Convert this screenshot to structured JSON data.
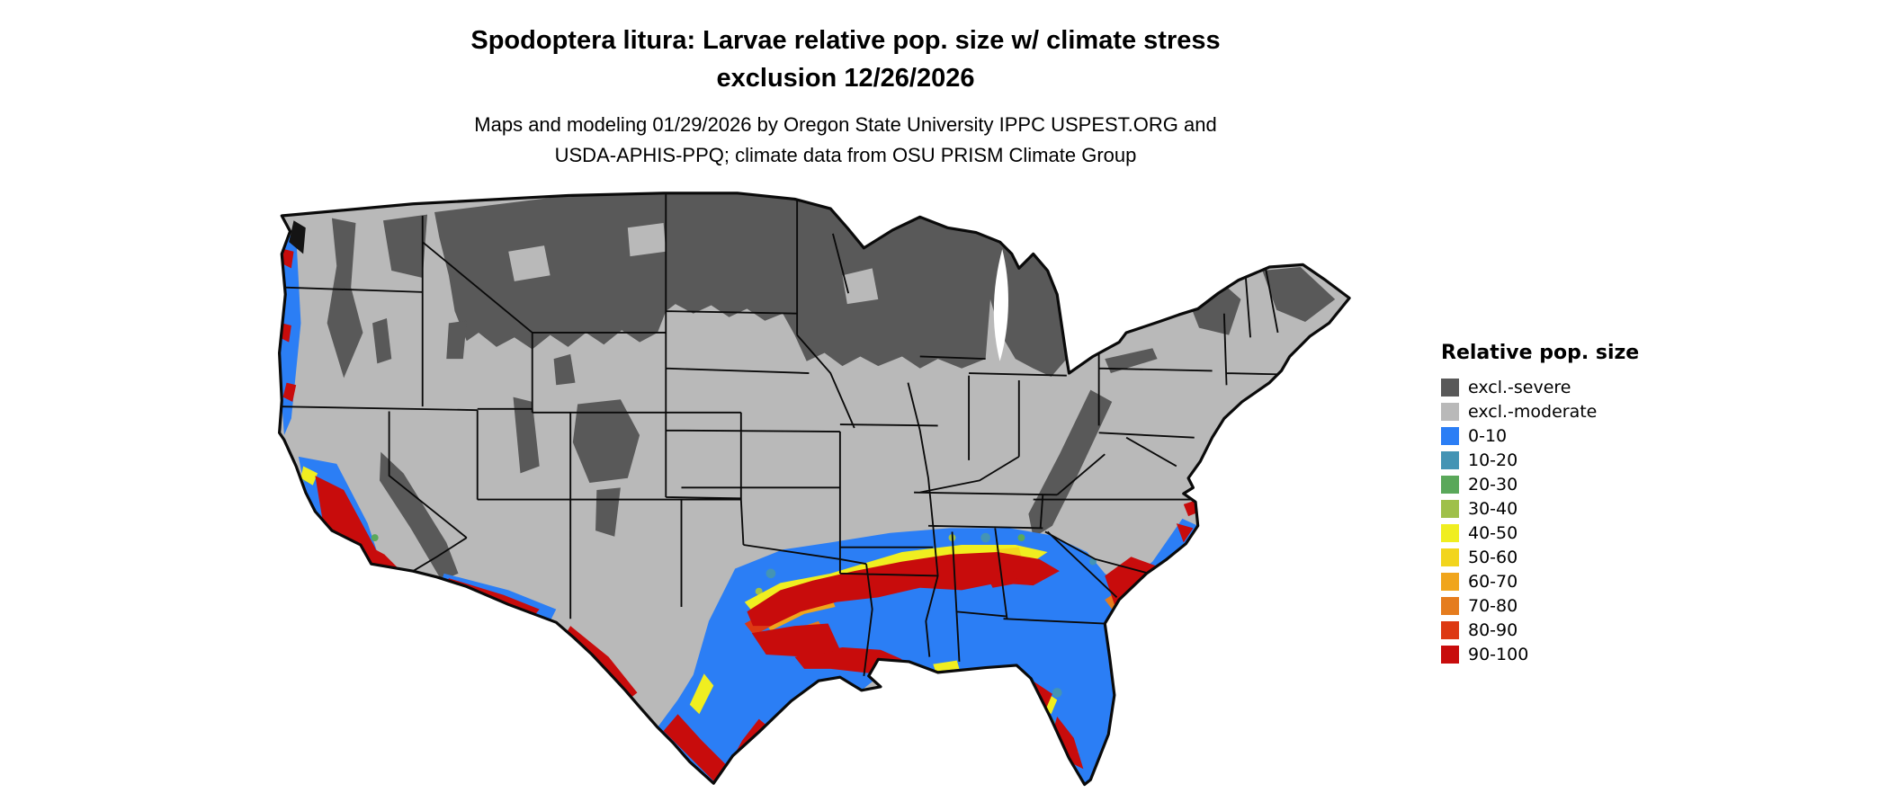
{
  "header": {
    "title_line1": "Spodoptera litura: Larvae relative pop. size w/ climate stress",
    "title_line2": "exclusion 12/26/2026",
    "subtitle_line1": "Maps and modeling 01/29/2026 by Oregon State University IPPC USPEST.ORG and",
    "subtitle_line2": "USDA-APHIS-PPQ; climate data from OSU PRISM Climate Group"
  },
  "legend": {
    "title": "Relative pop. size",
    "items": [
      {
        "label": "excl.-severe",
        "color": "#595959"
      },
      {
        "label": "excl.-moderate",
        "color": "#b9b9b9"
      },
      {
        "label": "0-10",
        "color": "#2b7ef5"
      },
      {
        "label": "10-20",
        "color": "#4494b4"
      },
      {
        "label": "20-30",
        "color": "#5aa85a"
      },
      {
        "label": "30-40",
        "color": "#9fc04a"
      },
      {
        "label": "40-50",
        "color": "#f0ee20"
      },
      {
        "label": "50-60",
        "color": "#f2d51d"
      },
      {
        "label": "60-70",
        "color": "#f0a51c"
      },
      {
        "label": "70-80",
        "color": "#e57c1e"
      },
      {
        "label": "80-90",
        "color": "#dd3913"
      },
      {
        "label": "90-100",
        "color": "#c80c0c"
      }
    ]
  },
  "map": {
    "colors": {
      "water_spot": "#141414",
      "state_border": "#0a0a0a"
    }
  }
}
